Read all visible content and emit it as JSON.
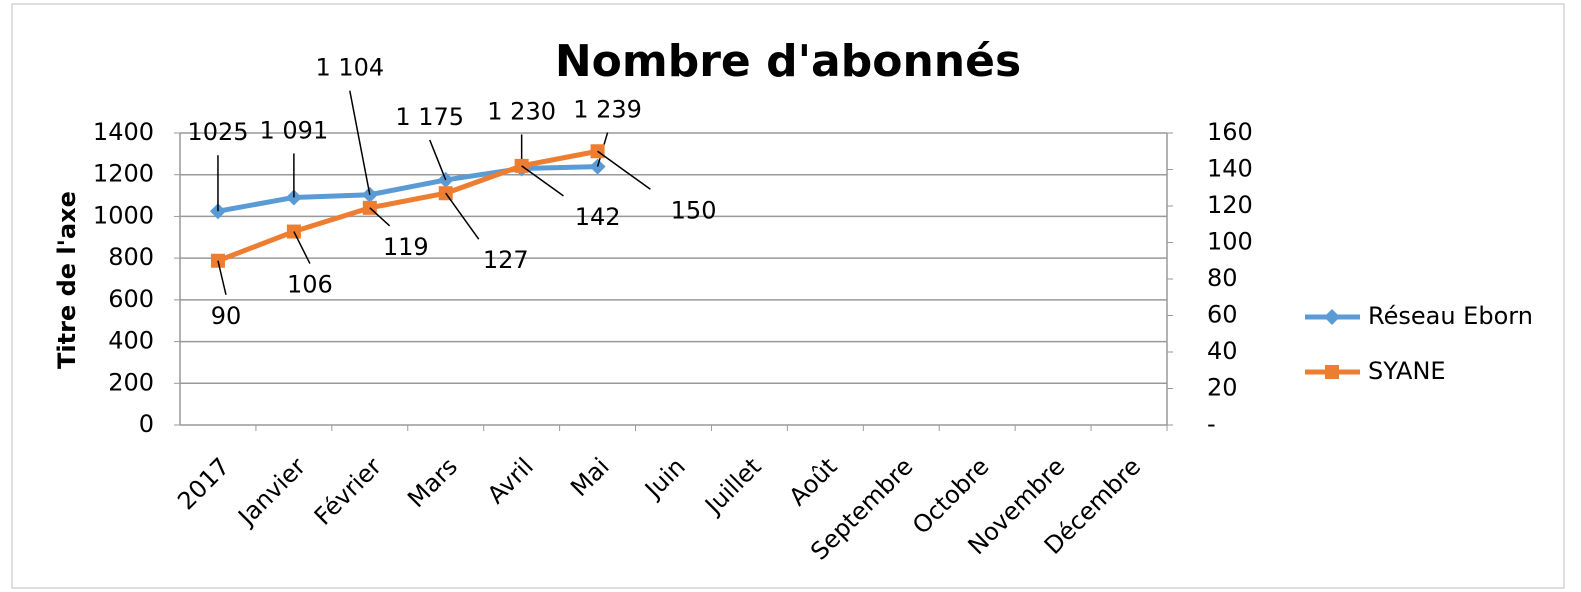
{
  "chart_data": {
    "type": "line",
    "title": "Nombre d'abonnés",
    "y_label": "Titre de l'axe",
    "categories": [
      "2017",
      "Janvier",
      "Février",
      "Mars",
      "Avril",
      "Mai",
      "Juin",
      "Juillet",
      "Août",
      "Septembre",
      "Octobre",
      "Novembre",
      "Décembre"
    ],
    "series": [
      {
        "name": "Réseau Eborn",
        "color": "#5b9bd5",
        "marker": "diamond",
        "values": [
          1025,
          1091,
          1104,
          1175,
          1230,
          1239,
          null,
          null,
          null,
          null,
          null,
          null,
          null
        ],
        "value_labels": [
          "1025",
          "1 091",
          "1 104",
          "1 175",
          "1 230",
          "1 239",
          null,
          null,
          null,
          null,
          null,
          null,
          null
        ]
      },
      {
        "name": "SYANE",
        "color": "#ed7d31",
        "marker": "square",
        "axis": "y2",
        "values": [
          90,
          106,
          119,
          127,
          142,
          150,
          null,
          null,
          null,
          null,
          null,
          null,
          null
        ]
      }
    ],
    "ylim": [
      0,
      1400
    ],
    "yticks": [
      0,
      200,
      400,
      600,
      800,
      1000,
      1200,
      1400
    ],
    "y2lim": [
      0,
      160
    ],
    "y2ticks": [
      {
        "value": 0,
        "label": "-"
      },
      20,
      40,
      60,
      80,
      100,
      120,
      140,
      160
    ],
    "grid": true,
    "legend": "right"
  }
}
